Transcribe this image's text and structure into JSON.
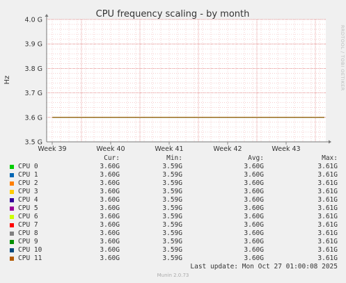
{
  "chart_data": {
    "type": "line",
    "title": "CPU frequency scaling - by month",
    "ylabel": "Hz",
    "ylim": [
      3.5,
      4.0
    ],
    "y_ticks": [
      {
        "value": 3.5,
        "label": "3.5 G"
      },
      {
        "value": 3.6,
        "label": "3.6 G"
      },
      {
        "value": 3.7,
        "label": "3.7 G"
      },
      {
        "value": 3.8,
        "label": "3.8 G"
      },
      {
        "value": 3.9,
        "label": "3.9 G"
      },
      {
        "value": 4.0,
        "label": "4.0 G"
      }
    ],
    "x_ticks": [
      "Week 39",
      "Week 40",
      "Week 41",
      "Week 42",
      "Week 43"
    ],
    "grid": true,
    "line_value": 3.6,
    "line_color": "#cc7000",
    "series": [
      {
        "name": "CPU 0",
        "color": "#00cc00",
        "cur": "3.60G",
        "min": "3.59G",
        "avg": "3.60G",
        "max": "3.61G"
      },
      {
        "name": "CPU 1",
        "color": "#0066b3",
        "cur": "3.60G",
        "min": "3.59G",
        "avg": "3.60G",
        "max": "3.61G"
      },
      {
        "name": "CPU 2",
        "color": "#ff8000",
        "cur": "3.60G",
        "min": "3.59G",
        "avg": "3.60G",
        "max": "3.61G"
      },
      {
        "name": "CPU 3",
        "color": "#ffcc00",
        "cur": "3.60G",
        "min": "3.59G",
        "avg": "3.60G",
        "max": "3.61G"
      },
      {
        "name": "CPU 4",
        "color": "#330099",
        "cur": "3.60G",
        "min": "3.59G",
        "avg": "3.60G",
        "max": "3.61G"
      },
      {
        "name": "CPU 5",
        "color": "#990099",
        "cur": "3.60G",
        "min": "3.59G",
        "avg": "3.60G",
        "max": "3.61G"
      },
      {
        "name": "CPU 6",
        "color": "#ccff00",
        "cur": "3.60G",
        "min": "3.59G",
        "avg": "3.60G",
        "max": "3.61G"
      },
      {
        "name": "CPU 7",
        "color": "#ff0000",
        "cur": "3.60G",
        "min": "3.59G",
        "avg": "3.60G",
        "max": "3.61G"
      },
      {
        "name": "CPU 8",
        "color": "#808080",
        "cur": "3.60G",
        "min": "3.59G",
        "avg": "3.60G",
        "max": "3.61G"
      },
      {
        "name": "CPU 9",
        "color": "#008f00",
        "cur": "3.60G",
        "min": "3.59G",
        "avg": "3.60G",
        "max": "3.61G"
      },
      {
        "name": "CPU 10",
        "color": "#00487d",
        "cur": "3.60G",
        "min": "3.59G",
        "avg": "3.60G",
        "max": "3.61G"
      },
      {
        "name": "CPU 11",
        "color": "#b35a00",
        "cur": "3.60G",
        "min": "3.59G",
        "avg": "3.60G",
        "max": "3.61G"
      }
    ],
    "legend_headers": {
      "cur": "Cur:",
      "min": "Min:",
      "avg": "Avg:",
      "max": "Max:"
    }
  },
  "last_update": "Last update: Mon Oct 27 01:00:08 2025",
  "footer": "Munin 2.0.73",
  "watermark": "RRDTOOL / TOBI OETIKER"
}
